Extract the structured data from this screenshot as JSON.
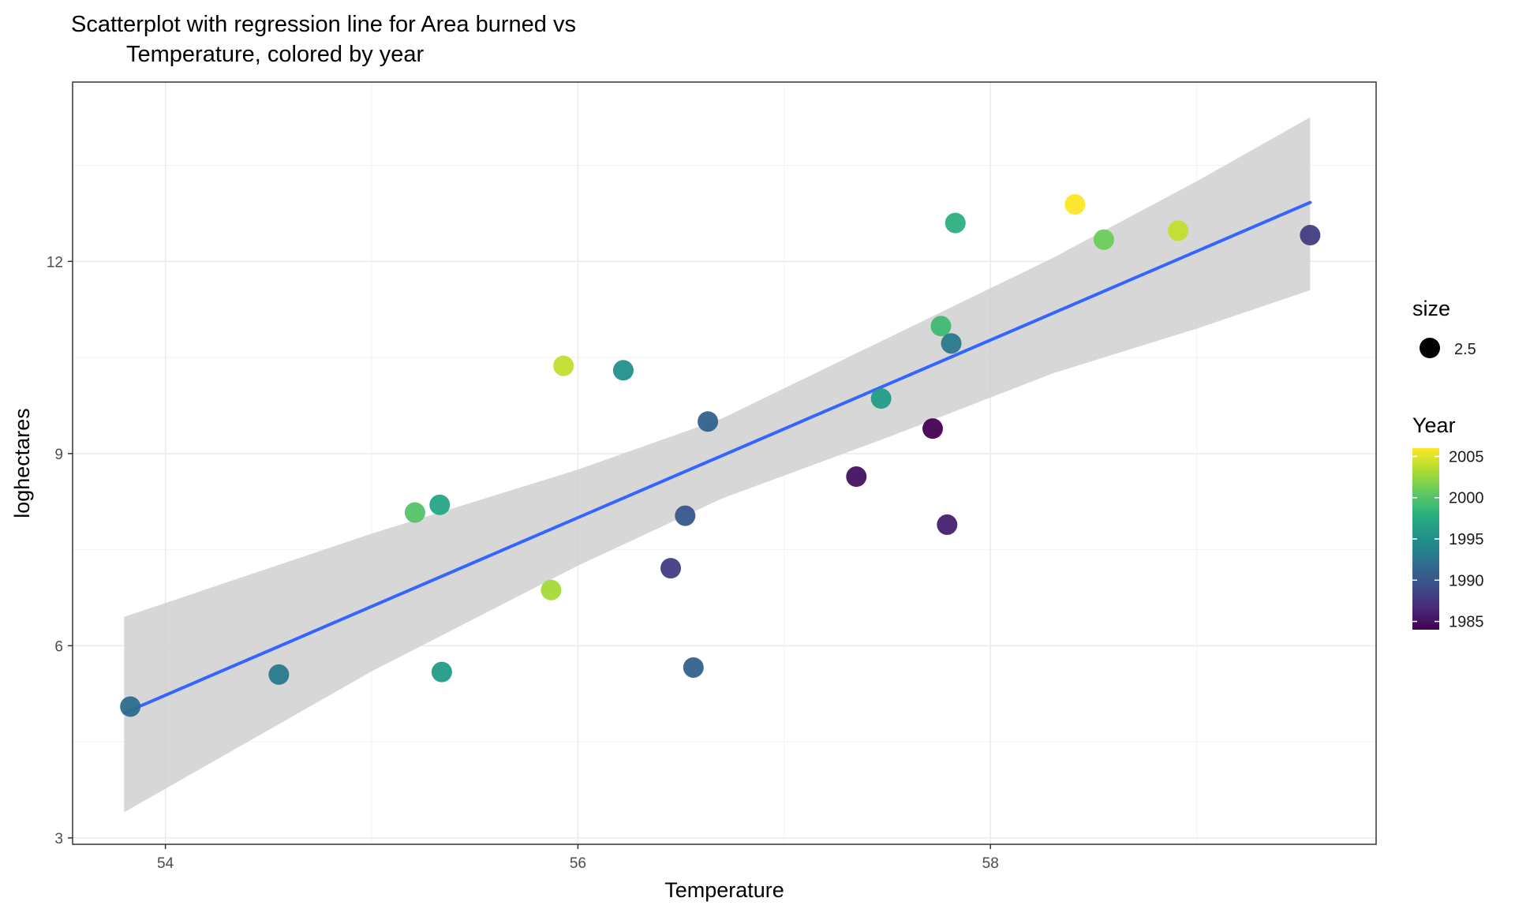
{
  "chart_data": {
    "type": "scatter",
    "title_lines": [
      "Scatterplot with regression line for Area burned vs",
      "Temperature, colored by year"
    ],
    "xlabel": "Temperature",
    "ylabel": "loghectares",
    "xlim": [
      53.55,
      59.87
    ],
    "ylim": [
      2.9,
      14.8
    ],
    "x_ticks": [
      54,
      56,
      58
    ],
    "x_tick_labels": [
      "54",
      "56",
      "58"
    ],
    "y_ticks": [
      3,
      6,
      9,
      12
    ],
    "y_tick_labels": [
      "3",
      "6",
      "9",
      "12"
    ],
    "grid": true,
    "theme": "bw",
    "points": [
      {
        "x": 53.83,
        "y": 5.05,
        "year": 1992
      },
      {
        "x": 54.55,
        "y": 5.55,
        "year": 1993
      },
      {
        "x": 55.21,
        "y": 8.08,
        "year": 2000
      },
      {
        "x": 55.33,
        "y": 8.2,
        "year": 1997
      },
      {
        "x": 55.34,
        "y": 5.59,
        "year": 1996
      },
      {
        "x": 55.87,
        "y": 6.87,
        "year": 2003
      },
      {
        "x": 55.93,
        "y": 10.37,
        "year": 2004
      },
      {
        "x": 56.22,
        "y": 10.3,
        "year": 1995
      },
      {
        "x": 56.45,
        "y": 7.21,
        "year": 1988
      },
      {
        "x": 56.52,
        "y": 8.03,
        "year": 1990
      },
      {
        "x": 56.56,
        "y": 5.66,
        "year": 1991
      },
      {
        "x": 56.63,
        "y": 9.5,
        "year": 1991
      },
      {
        "x": 57.35,
        "y": 8.64,
        "year": 1985
      },
      {
        "x": 57.47,
        "y": 9.86,
        "year": 1996
      },
      {
        "x": 57.72,
        "y": 9.39,
        "year": 1984
      },
      {
        "x": 57.76,
        "y": 10.99,
        "year": 1999
      },
      {
        "x": 57.79,
        "y": 7.89,
        "year": 1986
      },
      {
        "x": 57.81,
        "y": 10.72,
        "year": 1993
      },
      {
        "x": 57.83,
        "y": 12.6,
        "year": 1998
      },
      {
        "x": 58.41,
        "y": 12.89,
        "year": 2006
      },
      {
        "x": 58.55,
        "y": 12.34,
        "year": 2001
      },
      {
        "x": 58.91,
        "y": 12.48,
        "year": 2004
      },
      {
        "x": 59.55,
        "y": 12.41,
        "year": 1988
      }
    ],
    "regression": {
      "label": "regression line",
      "color": "#3366FF",
      "x": [
        53.8,
        59.55
      ],
      "y": [
        4.95,
        12.92
      ],
      "band_color": "#d0d0d0",
      "band": [
        {
          "x": 53.8,
          "lo": 3.4,
          "hi": 6.45
        },
        {
          "x": 55.0,
          "lo": 5.6,
          "hi": 7.75
        },
        {
          "x": 56.0,
          "lo": 7.25,
          "hi": 8.75
        },
        {
          "x": 56.7,
          "lo": 8.3,
          "hi": 9.55
        },
        {
          "x": 57.5,
          "lo": 9.25,
          "hi": 10.8
        },
        {
          "x": 58.3,
          "lo": 10.25,
          "hi": 12.05
        },
        {
          "x": 59.0,
          "lo": 10.95,
          "hi": 13.25
        },
        {
          "x": 59.55,
          "lo": 11.55,
          "hi": 14.25
        }
      ]
    },
    "color_scale": {
      "name": "viridis",
      "domain": [
        1984,
        2006
      ],
      "stops": [
        "#440154",
        "#472C7A",
        "#3B518B",
        "#2C718E",
        "#21908C",
        "#27AD81",
        "#5DC863",
        "#AADC32",
        "#FDE725"
      ]
    },
    "legend": {
      "placement": "right",
      "size": {
        "title": "size",
        "label": "2.5",
        "color": "#000000"
      },
      "year": {
        "title": "Year",
        "labels": [
          "2005",
          "2000",
          "1995",
          "1990",
          "1985"
        ],
        "values": [
          2005,
          2000,
          1995,
          1990,
          1985
        ]
      }
    }
  }
}
